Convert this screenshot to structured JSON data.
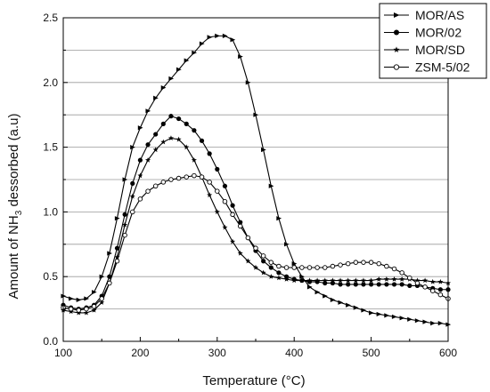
{
  "chart_data": {
    "type": "line",
    "xlabel": "Temperature (°C)",
    "ylabel_parts": {
      "pre": "Amount of NH",
      "sub": "3",
      "post": " dessorbed (a.u)"
    },
    "xlim": [
      100,
      600
    ],
    "ylim": [
      0,
      2.5
    ],
    "xticks": [
      "100",
      "200",
      "300",
      "400",
      "500",
      "600"
    ],
    "yticks": [
      "0.0",
      "0.5",
      "1.0",
      "1.5",
      "2.0",
      "2.5"
    ],
    "grid": "horizontal",
    "legend_position": "top-right",
    "series": [
      {
        "name": "MOR/AS",
        "marker": "triangle-right",
        "color": "#000000",
        "x": [
          100,
          110,
          120,
          130,
          140,
          150,
          160,
          170,
          180,
          190,
          200,
          210,
          220,
          230,
          240,
          250,
          260,
          270,
          280,
          290,
          300,
          310,
          320,
          330,
          340,
          350,
          360,
          370,
          380,
          390,
          400,
          410,
          420,
          430,
          440,
          450,
          460,
          470,
          480,
          490,
          500,
          510,
          520,
          530,
          540,
          550,
          560,
          570,
          580,
          590,
          600
        ],
        "y": [
          0.35,
          0.33,
          0.32,
          0.33,
          0.38,
          0.5,
          0.68,
          0.95,
          1.25,
          1.5,
          1.65,
          1.78,
          1.88,
          1.96,
          2.03,
          2.1,
          2.17,
          2.23,
          2.3,
          2.35,
          2.36,
          2.36,
          2.33,
          2.2,
          2.0,
          1.75,
          1.48,
          1.2,
          0.95,
          0.75,
          0.6,
          0.5,
          0.42,
          0.38,
          0.35,
          0.32,
          0.3,
          0.28,
          0.26,
          0.24,
          0.22,
          0.21,
          0.2,
          0.19,
          0.18,
          0.17,
          0.16,
          0.15,
          0.14,
          0.14,
          0.13
        ]
      },
      {
        "name": "MOR/02",
        "marker": "circle-filled",
        "color": "#000000",
        "x": [
          100,
          110,
          120,
          130,
          140,
          150,
          160,
          170,
          180,
          190,
          200,
          210,
          220,
          230,
          240,
          250,
          260,
          270,
          280,
          290,
          300,
          310,
          320,
          330,
          340,
          350,
          360,
          370,
          380,
          390,
          400,
          410,
          420,
          430,
          440,
          450,
          460,
          470,
          480,
          490,
          500,
          510,
          520,
          530,
          540,
          550,
          560,
          570,
          580,
          590,
          600
        ],
        "y": [
          0.28,
          0.26,
          0.25,
          0.26,
          0.28,
          0.35,
          0.5,
          0.72,
          0.98,
          1.22,
          1.4,
          1.52,
          1.6,
          1.68,
          1.74,
          1.72,
          1.68,
          1.63,
          1.55,
          1.45,
          1.33,
          1.2,
          1.05,
          0.92,
          0.8,
          0.7,
          0.62,
          0.57,
          0.53,
          0.5,
          0.48,
          0.47,
          0.46,
          0.46,
          0.45,
          0.45,
          0.44,
          0.44,
          0.44,
          0.44,
          0.44,
          0.44,
          0.44,
          0.44,
          0.44,
          0.43,
          0.43,
          0.42,
          0.41,
          0.4,
          0.4
        ]
      },
      {
        "name": "MOR/SD",
        "marker": "star",
        "color": "#000000",
        "x": [
          100,
          110,
          120,
          130,
          140,
          150,
          160,
          170,
          180,
          190,
          200,
          210,
          220,
          230,
          240,
          250,
          260,
          270,
          280,
          290,
          300,
          310,
          320,
          330,
          340,
          350,
          360,
          370,
          380,
          390,
          400,
          410,
          420,
          430,
          440,
          450,
          460,
          470,
          480,
          490,
          500,
          510,
          520,
          530,
          540,
          550,
          560,
          570,
          580,
          590,
          600
        ],
        "y": [
          0.24,
          0.23,
          0.22,
          0.22,
          0.24,
          0.3,
          0.45,
          0.65,
          0.9,
          1.12,
          1.28,
          1.4,
          1.48,
          1.54,
          1.57,
          1.56,
          1.5,
          1.4,
          1.27,
          1.13,
          1.0,
          0.88,
          0.77,
          0.68,
          0.62,
          0.57,
          0.53,
          0.5,
          0.49,
          0.48,
          0.47,
          0.47,
          0.47,
          0.47,
          0.47,
          0.47,
          0.47,
          0.47,
          0.47,
          0.47,
          0.47,
          0.48,
          0.48,
          0.48,
          0.48,
          0.48,
          0.47,
          0.47,
          0.46,
          0.46,
          0.45
        ]
      },
      {
        "name": "ZSM-5/02",
        "marker": "circle-open",
        "color": "#000000",
        "x": [
          100,
          110,
          120,
          130,
          140,
          150,
          160,
          170,
          180,
          190,
          200,
          210,
          220,
          230,
          240,
          250,
          260,
          270,
          280,
          290,
          300,
          310,
          320,
          330,
          340,
          350,
          360,
          370,
          380,
          390,
          400,
          410,
          420,
          430,
          440,
          450,
          460,
          470,
          480,
          490,
          500,
          510,
          520,
          530,
          540,
          550,
          560,
          570,
          580,
          590,
          600
        ],
        "y": [
          0.26,
          0.25,
          0.24,
          0.25,
          0.27,
          0.33,
          0.45,
          0.62,
          0.82,
          1.0,
          1.1,
          1.16,
          1.2,
          1.23,
          1.25,
          1.26,
          1.27,
          1.28,
          1.27,
          1.23,
          1.16,
          1.08,
          0.98,
          0.89,
          0.8,
          0.72,
          0.66,
          0.61,
          0.58,
          0.57,
          0.57,
          0.57,
          0.57,
          0.57,
          0.57,
          0.58,
          0.59,
          0.6,
          0.61,
          0.61,
          0.61,
          0.6,
          0.58,
          0.56,
          0.53,
          0.49,
          0.45,
          0.42,
          0.39,
          0.36,
          0.33
        ]
      }
    ]
  }
}
